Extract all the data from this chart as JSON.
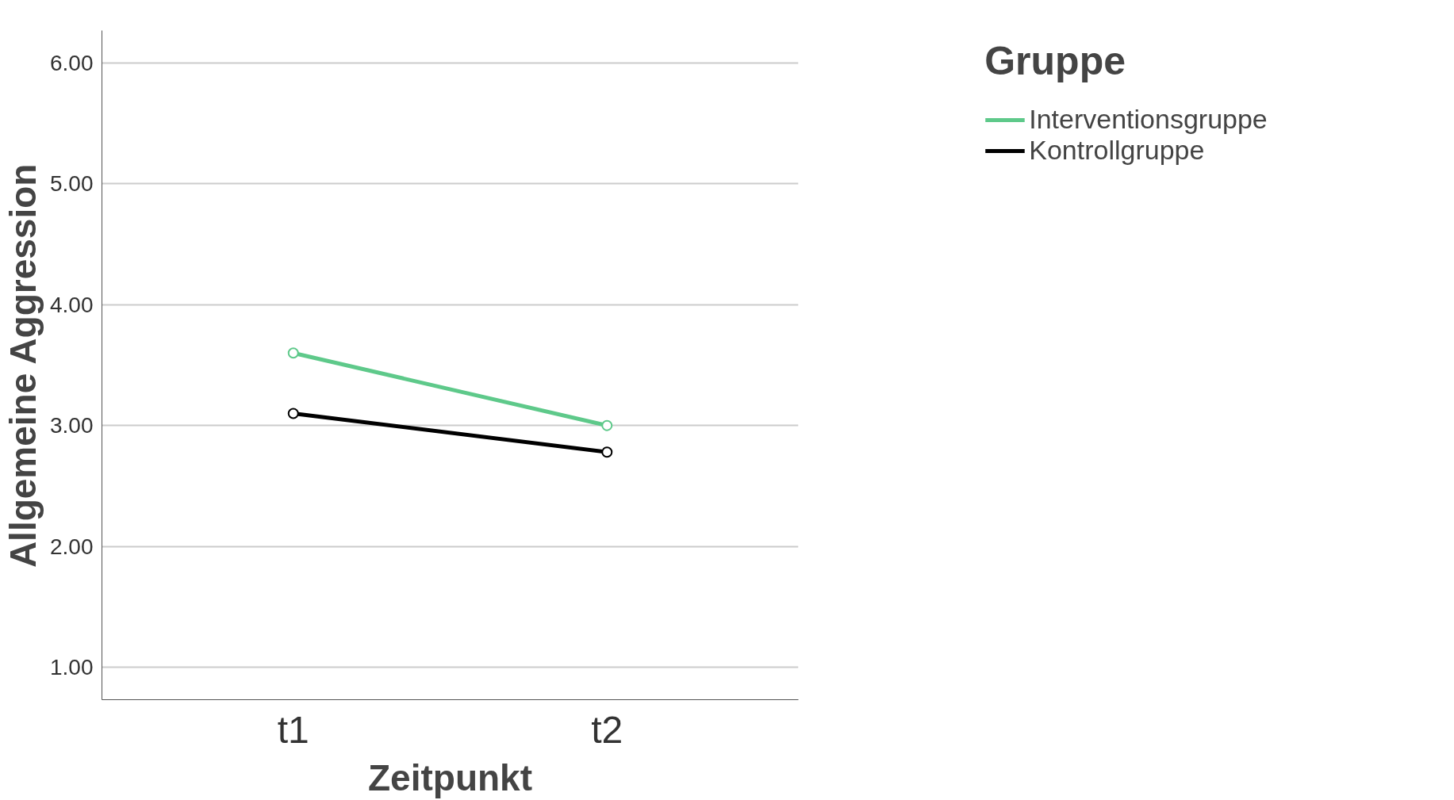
{
  "chart_data": {
    "type": "line",
    "xlabel": "Zeitpunkt",
    "ylabel": "Allgemeine Aggression",
    "legend_title": "Gruppe",
    "categories": [
      "t1",
      "t2"
    ],
    "series": [
      {
        "name": "Interventionsgruppe",
        "color": "#5ec98a",
        "values": [
          3.6,
          3.0
        ]
      },
      {
        "name": "Kontrollgruppe",
        "color": "#000000",
        "values": [
          3.1,
          2.78
        ]
      }
    ],
    "ylim": [
      0.73,
      6.27
    ],
    "yticks": [
      {
        "value": 1,
        "label": "1.00"
      },
      {
        "value": 2,
        "label": "2.00"
      },
      {
        "value": 3,
        "label": "3.00"
      },
      {
        "value": 4,
        "label": "4.00"
      },
      {
        "value": 5,
        "label": "5.00"
      },
      {
        "value": 6,
        "label": "6.00"
      }
    ],
    "grid": "y",
    "legend": "top right",
    "marker": "circle",
    "line_style": "solid"
  }
}
